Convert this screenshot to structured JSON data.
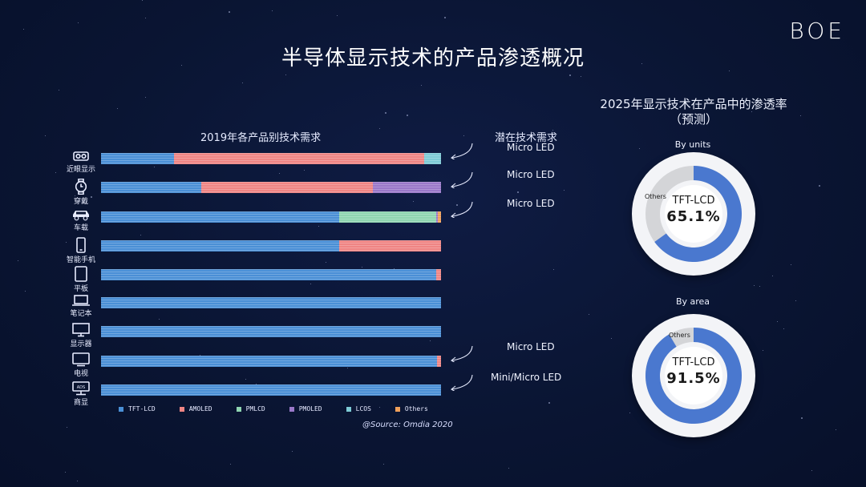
{
  "header": {
    "logo": "BOE",
    "title": "半导体显示技术的产品渗透概况"
  },
  "left_chart": {
    "title": "2019年各产品别技术需求",
    "potential_title": "潜在技术需求",
    "source": "@Source: Omdia 2020"
  },
  "colors": {
    "TFT-LCD": "#4a8fd6",
    "AMOLED": "#ef8584",
    "PMLCD": "#8fd5b1",
    "PMOLED": "#9a78c9",
    "LCOS": "#7ecbd6",
    "Others": "#f0a05a"
  },
  "legend": [
    "TFT-LCD",
    "AMOLED",
    "PMLCD",
    "PMOLED",
    "LCOS",
    "Others"
  ],
  "categories": [
    {
      "label": "近眼显示",
      "icon": "vr-glasses-icon",
      "potential": "Micro LED"
    },
    {
      "label": "穿戴",
      "icon": "watch-icon",
      "potential": "Micro LED"
    },
    {
      "label": "车载",
      "icon": "car-icon",
      "potential": "Micro LED"
    },
    {
      "label": "智能手机",
      "icon": "smartphone-icon",
      "potential": ""
    },
    {
      "label": "平板",
      "icon": "tablet-icon",
      "potential": ""
    },
    {
      "label": "笔记本",
      "icon": "laptop-icon",
      "potential": ""
    },
    {
      "label": "显示器",
      "icon": "monitor-icon",
      "potential": ""
    },
    {
      "label": "电视",
      "icon": "tv-icon",
      "potential": "Micro LED"
    },
    {
      "label": "商显",
      "icon": "signage-icon",
      "potential": "Mini/Micro LED"
    }
  ],
  "chart_data": [
    {
      "type": "bar",
      "orientation": "horizontal",
      "stacked": true,
      "title": "2019年各产品别技术需求",
      "categories": [
        "近眼显示",
        "穿戴",
        "车载",
        "智能手机",
        "平板",
        "笔记本",
        "显示器",
        "电视",
        "商显"
      ],
      "series": [
        {
          "name": "TFT-LCD",
          "values": [
            21.5,
            29.5,
            70,
            70,
            98.5,
            100,
            100,
            98.8,
            100
          ]
        },
        {
          "name": "AMOLED",
          "values": [
            73.5,
            50.5,
            0,
            30,
            1.5,
            0,
            0,
            1.2,
            0
          ]
        },
        {
          "name": "PMLCD",
          "values": [
            0,
            0,
            28.5,
            0,
            0,
            0,
            0,
            0,
            0
          ]
        },
        {
          "name": "PMOLED",
          "values": [
            0,
            20,
            0.5,
            0,
            0,
            0,
            0,
            0,
            0
          ]
        },
        {
          "name": "LCOS",
          "values": [
            5,
            0,
            0,
            0,
            0,
            0,
            0,
            0,
            0
          ]
        },
        {
          "name": "Others",
          "values": [
            0,
            0,
            1,
            0,
            0,
            0,
            0,
            0,
            0
          ]
        }
      ],
      "xlim": [
        0,
        100
      ],
      "legend": "bottom"
    },
    {
      "type": "pie",
      "title": "By units",
      "labels": [
        "TFT-LCD",
        "Others"
      ],
      "values": [
        65.1,
        34.9
      ],
      "center_label": "TFT-LCD",
      "center_value": "65.1%"
    },
    {
      "type": "pie",
      "title": "By area",
      "labels": [
        "TFT-LCD",
        "Others"
      ],
      "values": [
        91.5,
        8.5
      ],
      "center_label": "TFT-LCD",
      "center_value": "91.5%"
    }
  ],
  "right": {
    "title_line1": "2025年显示技术在产品中的渗透率",
    "title_line2": "（预测）",
    "others_label": "Others"
  }
}
